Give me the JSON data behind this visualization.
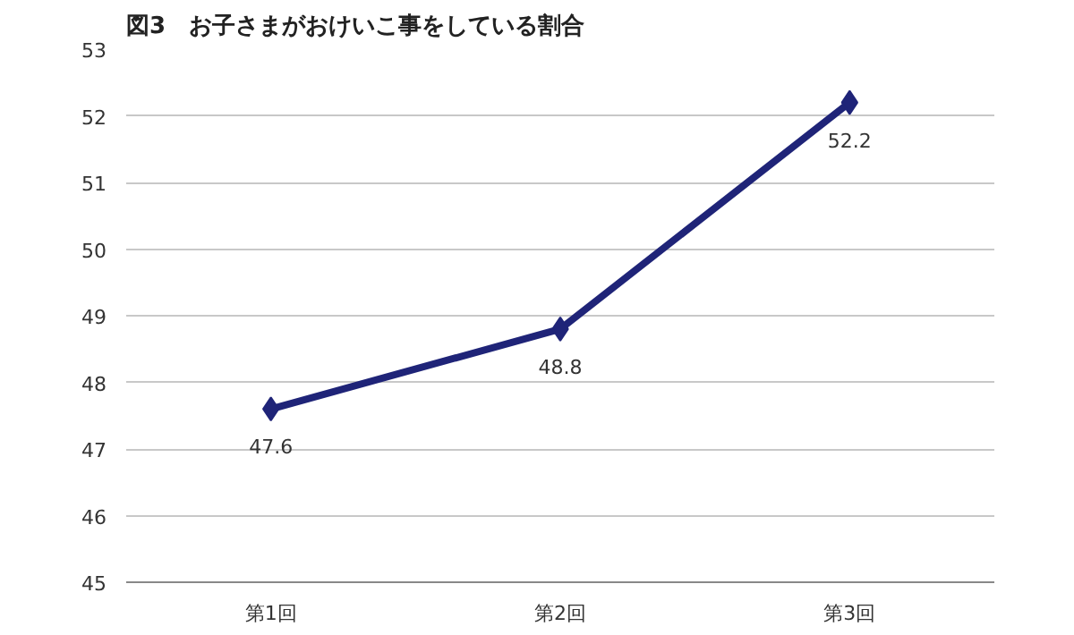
{
  "chart_data": {
    "type": "line",
    "title": "図3　お子さまがおけいこ事をしている割合",
    "categories": [
      "第1回",
      "第2回",
      "第3回"
    ],
    "series": [
      {
        "color": "#1f2478",
        "values": [
          47.6,
          48.8,
          52.2
        ]
      }
    ],
    "ylim": [
      45,
      53
    ],
    "yticks": [
      45,
      46,
      47,
      48,
      49,
      50,
      51,
      52,
      53
    ],
    "grid": "y",
    "marker": "diamond",
    "line_style": "solid",
    "data_labels": true
  }
}
